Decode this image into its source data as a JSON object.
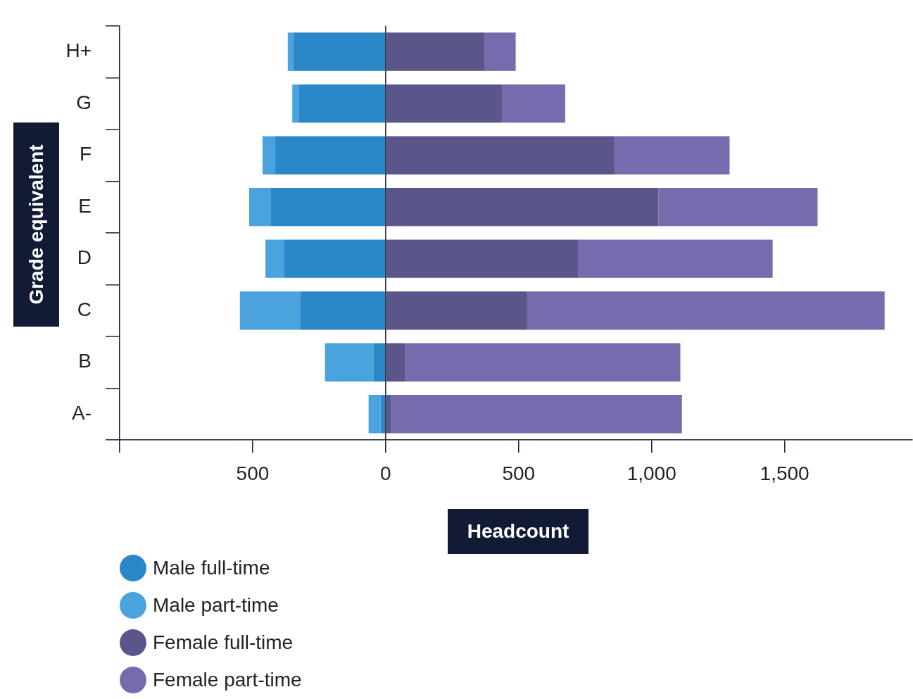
{
  "chart_data": {
    "type": "bar",
    "orientation": "horizontal",
    "stacked": true,
    "xlabel": "Headcount",
    "ylabel": "Grade equivalent",
    "categories": [
      "H+",
      "G",
      "F",
      "E",
      "D",
      "C",
      "B",
      "A-"
    ],
    "series": [
      {
        "name": "Male full-time",
        "color": "#2a88c8",
        "values": [
          -347,
          -325,
          -415,
          -431,
          -381,
          -320,
          -45,
          -19
        ]
      },
      {
        "name": "Male part-time",
        "color": "#4aa3dc",
        "values": [
          -21,
          -26,
          -48,
          -82,
          -71,
          -228,
          -183,
          -45
        ]
      },
      {
        "name": "Female full-time",
        "color": "#5b5689",
        "values": [
          373,
          437,
          862,
          1026,
          725,
          532,
          74,
          21
        ]
      },
      {
        "name": "Female part-time",
        "color": "#746cad",
        "values": [
          116,
          238,
          431,
          598,
          730,
          1344,
          1034,
          1093
        ]
      }
    ],
    "xlim": [
      -1000,
      1980
    ],
    "xticks": [
      {
        "value": -1000,
        "label": null
      },
      {
        "value": -500,
        "label": "500"
      },
      0,
      500,
      {
        "value": 1000,
        "label": "1,000"
      },
      {
        "value": 1500,
        "label": "1,500"
      }
    ],
    "ref_lines": [
      {
        "axis": "x",
        "value": 0,
        "color": "#1a1f36"
      }
    ],
    "grid": false,
    "legend": "bottom left"
  }
}
